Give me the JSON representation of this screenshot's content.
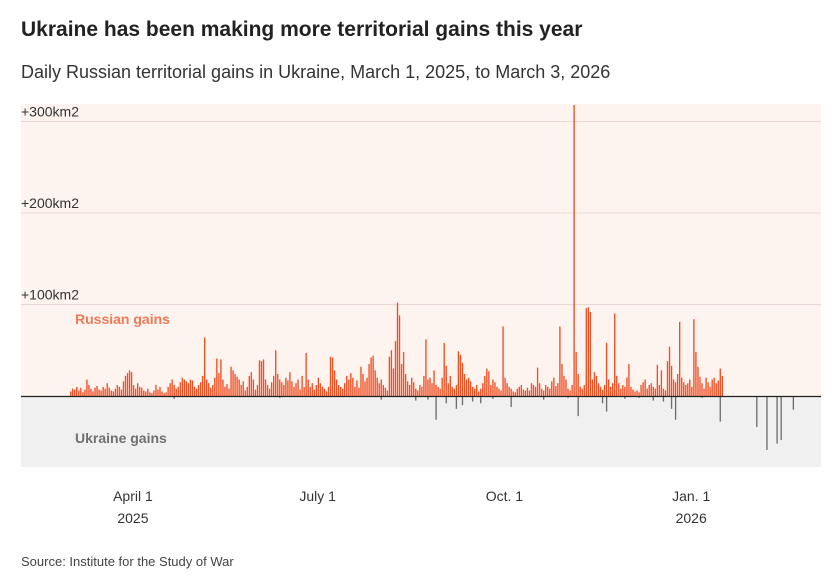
{
  "header": {
    "title": "Ukraine has been making more territorial gains this year",
    "subtitle": "Daily Russian territorial gains in Ukraine, March 1, 2025, to March 3, 2026"
  },
  "footer": {
    "source": "Source: Institute for the Study of War"
  },
  "chart_data": {
    "type": "bar",
    "title": "Ukraine has been making more territorial gains this year",
    "subtitle": "Daily Russian territorial gains in Ukraine, March 1, 2025, to March 3, 2026",
    "xlabel": "",
    "ylabel": "",
    "ylim": [
      -78,
      320
    ],
    "y_ticks": [
      {
        "value": 300,
        "label": "+300km2"
      },
      {
        "value": 200,
        "label": "+200km2"
      },
      {
        "value": 100,
        "label": "+100km2"
      }
    ],
    "x_ticks": [
      {
        "label": "April 1",
        "sublabel": "2025",
        "day": 31
      },
      {
        "label": "July 1",
        "sublabel": "",
        "day": 122
      },
      {
        "label": "Oct. 1",
        "sublabel": "",
        "day": 214
      },
      {
        "label": "Jan. 1",
        "sublabel": "2026",
        "day": 306
      }
    ],
    "annotations": [
      {
        "text": "Russian gains",
        "region": "positive"
      },
      {
        "text": "Ukraine gains",
        "region": "negative"
      }
    ],
    "colors": {
      "russian": "#f04e23",
      "ukraine": "#6f6f6f",
      "positive_bg": "#fdf3ef",
      "negative_bg": "#f0f0f0",
      "grid": "#e9d8d0"
    },
    "start_date": "2025-03-01",
    "end_date": "2026-03-03",
    "series": [
      {
        "name": "Russian gains",
        "values": [
          5,
          8,
          7,
          10,
          6,
          9,
          4,
          7,
          18,
          12,
          8,
          5,
          9,
          11,
          7,
          6,
          10,
          8,
          14,
          9,
          6,
          5,
          8,
          12,
          10,
          7,
          16,
          22,
          25,
          28,
          26,
          12,
          8,
          14,
          10,
          9,
          6,
          5,
          8,
          4,
          3,
          6,
          12,
          7,
          10,
          5,
          3,
          4,
          10,
          14,
          18,
          12,
          8,
          10,
          15,
          20,
          18,
          16,
          14,
          18,
          17,
          10,
          8,
          12,
          15,
          22,
          64,
          18,
          14,
          9,
          12,
          20,
          41,
          25,
          40,
          18,
          10,
          13,
          8,
          32,
          28,
          24,
          21,
          18,
          12,
          16,
          6,
          10,
          22,
          26,
          18,
          7,
          12,
          39,
          38,
          40,
          18,
          12,
          8,
          15,
          22,
          50,
          24,
          18,
          15,
          12,
          20,
          17,
          26,
          16,
          10,
          14,
          18,
          7,
          22,
          10,
          47,
          18,
          10,
          14,
          7,
          12,
          20,
          14,
          10,
          8,
          5,
          10,
          43,
          42,
          28,
          18,
          12,
          10,
          8,
          14,
          22,
          18,
          25,
          20,
          10,
          17,
          9,
          32,
          24,
          16,
          20,
          35,
          42,
          44,
          28,
          20,
          14,
          18,
          12,
          9,
          6,
          43,
          50,
          30,
          60,
          102,
          88,
          35,
          48,
          24,
          16,
          12,
          20,
          15,
          8,
          6,
          12,
          10,
          22,
          62,
          18,
          20,
          14,
          28,
          12,
          10,
          8,
          20,
          58,
          33,
          14,
          22,
          10,
          8,
          12,
          49,
          45,
          36,
          24,
          18,
          20,
          16,
          10,
          8,
          12,
          5,
          8,
          14,
          22,
          30,
          27,
          12,
          18,
          15,
          10,
          8,
          6,
          76,
          20,
          14,
          10,
          8,
          5,
          4,
          8,
          10,
          12,
          7,
          6,
          9,
          6,
          14,
          12,
          10,
          31,
          14,
          8,
          6,
          12,
          10,
          8,
          16,
          20,
          11,
          14,
          76,
          35,
          22,
          18,
          8,
          6,
          12,
          318,
          48,
          24,
          10,
          8,
          12,
          96,
          97,
          92,
          18,
          26,
          22,
          14,
          10,
          7,
          12,
          58,
          18,
          10,
          14,
          90,
          22,
          14,
          8,
          12,
          10,
          20,
          35,
          10,
          7,
          5,
          6,
          4,
          12,
          15,
          18,
          8,
          12,
          14,
          10,
          8,
          34,
          12,
          28,
          8,
          6,
          38,
          54,
          33,
          18,
          15,
          24,
          81,
          20,
          15,
          12,
          14,
          18,
          10,
          84,
          48,
          32,
          21,
          14,
          8,
          20,
          15,
          10,
          18,
          20,
          14,
          17,
          30,
          22
        ]
      },
      {
        "name": "Ukraine gains",
        "values": [
          0,
          0,
          0,
          0,
          0,
          0,
          0,
          0,
          0,
          0,
          0,
          0,
          0,
          0,
          0,
          0,
          0,
          0,
          0,
          0,
          0,
          0,
          0,
          0,
          0,
          0,
          0,
          0,
          0,
          0,
          0,
          0,
          0,
          0,
          0,
          0,
          0,
          0,
          0,
          0,
          0,
          0,
          0,
          0,
          0,
          0,
          0,
          0,
          0,
          0,
          0,
          0,
          0,
          0,
          0,
          0,
          0,
          0,
          0,
          0,
          0,
          0,
          0,
          0,
          0,
          0,
          0,
          0,
          0,
          0,
          0,
          0,
          0,
          0,
          0,
          0,
          0,
          0,
          0,
          0,
          0,
          0,
          0,
          0,
          0,
          0,
          0,
          0,
          0,
          0,
          0,
          0,
          0,
          0,
          0,
          0,
          0,
          0,
          0,
          0,
          0,
          0,
          0,
          0,
          0,
          0,
          0,
          0,
          0,
          0,
          0,
          0,
          0,
          0,
          0,
          0,
          0,
          0,
          0,
          0,
          0,
          0,
          0,
          0,
          0,
          0,
          0,
          0,
          0,
          0,
          0,
          0,
          0,
          0,
          0,
          0,
          0,
          0,
          0,
          0,
          0,
          0,
          0,
          0,
          0,
          0,
          0,
          0,
          0,
          0,
          0,
          0,
          0,
          0,
          0,
          0,
          0,
          0,
          0,
          0,
          0,
          0,
          0,
          0,
          0,
          0,
          0,
          0,
          0,
          0,
          0,
          0,
          0,
          0,
          0,
          0,
          0,
          0,
          0,
          0,
          0,
          0,
          0,
          0,
          0,
          0,
          0,
          0,
          0,
          0,
          0,
          0,
          0,
          0,
          0,
          0,
          0,
          0,
          0,
          0,
          0,
          0,
          0,
          0,
          0,
          0,
          0,
          0,
          0,
          0,
          0,
          0,
          0,
          0,
          0,
          0,
          0,
          0,
          0,
          0,
          0,
          0,
          0,
          0,
          0,
          0,
          0,
          0,
          0,
          0,
          0,
          0,
          0,
          0,
          0,
          0,
          0,
          0,
          0,
          0,
          0,
          0,
          0,
          0,
          0,
          0,
          0,
          0,
          0,
          0,
          0,
          0,
          0,
          0,
          0,
          0,
          0,
          0,
          0,
          0,
          0,
          0,
          0,
          0,
          0,
          0,
          0,
          0,
          0,
          0,
          0,
          0,
          0,
          0,
          0,
          0,
          0,
          0,
          0,
          0,
          0,
          0,
          0,
          0,
          0,
          0,
          0,
          0,
          0,
          0,
          0,
          0,
          0,
          0,
          0,
          0,
          0,
          0,
          0,
          0,
          0,
          0,
          0,
          0,
          0,
          0,
          0,
          0,
          0,
          0,
          0,
          0,
          0,
          0,
          0,
          0,
          0,
          0,
          0,
          0,
          0,
          0,
          0,
          0,
          0,
          0,
          0,
          0,
          0,
          0,
          0,
          0,
          0,
          0,
          0,
          0,
          0,
          0
        ],
        "points": [
          {
            "day": 51,
            "value": -3
          },
          {
            "day": 103,
            "value": -2
          },
          {
            "day": 153,
            "value": -4
          },
          {
            "day": 170,
            "value": -5
          },
          {
            "day": 176,
            "value": -4
          },
          {
            "day": 180,
            "value": -26
          },
          {
            "day": 185,
            "value": -8
          },
          {
            "day": 190,
            "value": -14
          },
          {
            "day": 193,
            "value": -10
          },
          {
            "day": 198,
            "value": -6
          },
          {
            "day": 202,
            "value": -8
          },
          {
            "day": 208,
            "value": -3
          },
          {
            "day": 217,
            "value": -12
          },
          {
            "day": 233,
            "value": -4
          },
          {
            "day": 245,
            "value": -2
          },
          {
            "day": 250,
            "value": -22
          },
          {
            "day": 262,
            "value": -8
          },
          {
            "day": 264,
            "value": -17
          },
          {
            "day": 273,
            "value": -3
          },
          {
            "day": 280,
            "value": -2
          },
          {
            "day": 287,
            "value": -5
          },
          {
            "day": 292,
            "value": -6
          },
          {
            "day": 296,
            "value": -14
          },
          {
            "day": 298,
            "value": -26
          },
          {
            "day": 311,
            "value": -2
          },
          {
            "day": 320,
            "value": -28
          },
          {
            "day": 338,
            "value": -34
          },
          {
            "day": 343,
            "value": -59
          },
          {
            "day": 348,
            "value": -52
          },
          {
            "day": 350,
            "value": -48
          },
          {
            "day": 356,
            "value": -15
          }
        ]
      }
    ]
  }
}
